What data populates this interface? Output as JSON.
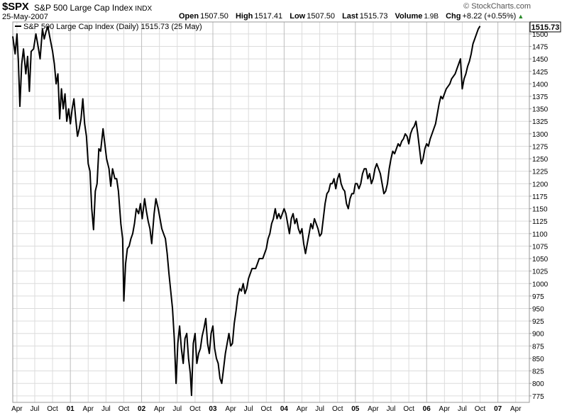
{
  "header": {
    "symbol": "$SPX",
    "name": "S&P 500 Large Cap Index",
    "exchange": "INDX",
    "date": "25-May-2007",
    "brand": "© StockCharts.com",
    "open_label": "Open",
    "open": "1507.50",
    "high_label": "High",
    "high": "1517.41",
    "low_label": "Low",
    "low": "1507.50",
    "last_label": "Last",
    "last": "1515.73",
    "volume_label": "Volume",
    "volume": "1.9B",
    "chg_label": "Chg",
    "chg": "+8.22 (+0.55%)",
    "chg_arrow": "▲",
    "up_color": "#2a8a2a"
  },
  "chart_data": {
    "type": "line",
    "legend": "S&P 500 Large Cap Index (Daily) 1515.73 (25 May)",
    "legend_position": "top-left",
    "last_value_label": "1515.73",
    "grid": true,
    "ylim": [
      762,
      1524
    ],
    "y_ticks": [
      775,
      800,
      825,
      850,
      875,
      900,
      925,
      950,
      975,
      1000,
      1025,
      1050,
      1075,
      1100,
      1125,
      1150,
      1175,
      1200,
      1225,
      1250,
      1275,
      1300,
      1325,
      1350,
      1375,
      1400,
      1425,
      1450,
      1475,
      1500
    ],
    "y_tick_labels": [
      "775",
      "800",
      "825",
      "850",
      "875",
      "900",
      "925",
      "950",
      "975",
      "1000",
      "1025",
      "1050",
      "1075",
      "1100",
      "1125",
      "1150",
      "1175",
      "1200",
      "1225",
      "1250",
      "1275",
      "1300",
      "1325",
      "1350",
      "1375",
      "1400",
      "1425",
      "1450",
      "1475",
      "1500"
    ],
    "x_tick_labels": [
      "Apr",
      "Jul",
      "Oct",
      "01",
      "Apr",
      "Jul",
      "Oct",
      "02",
      "Apr",
      "Jul",
      "Oct",
      "03",
      "Apr",
      "Jul",
      "Oct",
      "04",
      "Apr",
      "Jul",
      "Oct",
      "05",
      "Apr",
      "Jul",
      "Oct",
      "06",
      "Apr",
      "Jul",
      "Oct",
      "07",
      "Apr"
    ],
    "x_tick_months": [
      0,
      3,
      6,
      9,
      12,
      15,
      18,
      21,
      24,
      27,
      30,
      33,
      36,
      39,
      42,
      45,
      48,
      51,
      54,
      57,
      60,
      63,
      66,
      69,
      72,
      75,
      78,
      81,
      84
    ],
    "x_range_months": [
      -0.7,
      86.3
    ],
    "series": [
      {
        "values": [
          [
            -0.7,
            1495
          ],
          [
            -0.3,
            1460
          ],
          [
            0.0,
            1500
          ],
          [
            0.25,
            1445
          ],
          [
            0.5,
            1355
          ],
          [
            0.8,
            1440
          ],
          [
            1.1,
            1470
          ],
          [
            1.5,
            1420
          ],
          [
            1.8,
            1455
          ],
          [
            2.1,
            1385
          ],
          [
            2.4,
            1465
          ],
          [
            2.8,
            1470
          ],
          [
            3.2,
            1500
          ],
          [
            3.5,
            1480
          ],
          [
            3.9,
            1450
          ],
          [
            4.3,
            1510
          ],
          [
            4.6,
            1490
          ],
          [
            4.9,
            1505
          ],
          [
            5.2,
            1515
          ],
          [
            5.6,
            1490
          ],
          [
            6.0,
            1465
          ],
          [
            6.3,
            1440
          ],
          [
            6.6,
            1400
          ],
          [
            6.9,
            1420
          ],
          [
            7.2,
            1330
          ],
          [
            7.5,
            1390
          ],
          [
            7.8,
            1350
          ],
          [
            8.1,
            1380
          ],
          [
            8.4,
            1325
          ],
          [
            8.7,
            1350
          ],
          [
            9.0,
            1320
          ],
          [
            9.3,
            1350
          ],
          [
            9.6,
            1370
          ],
          [
            9.9,
            1330
          ],
          [
            10.2,
            1295
          ],
          [
            10.5,
            1310
          ],
          [
            10.8,
            1330
          ],
          [
            11.1,
            1370
          ],
          [
            11.4,
            1320
          ],
          [
            11.7,
            1295
          ],
          [
            12.0,
            1240
          ],
          [
            12.3,
            1225
          ],
          [
            12.6,
            1150
          ],
          [
            12.9,
            1108
          ],
          [
            13.2,
            1185
          ],
          [
            13.5,
            1200
          ],
          [
            13.8,
            1270
          ],
          [
            14.1,
            1265
          ],
          [
            14.5,
            1310
          ],
          [
            14.8,
            1280
          ],
          [
            15.1,
            1250
          ],
          [
            15.5,
            1230
          ],
          [
            15.8,
            1195
          ],
          [
            16.1,
            1230
          ],
          [
            16.5,
            1210
          ],
          [
            16.8,
            1210
          ],
          [
            17.1,
            1185
          ],
          [
            17.5,
            1120
          ],
          [
            17.8,
            1090
          ],
          [
            18.0,
            965
          ],
          [
            18.3,
            1040
          ],
          [
            18.6,
            1070
          ],
          [
            18.9,
            1075
          ],
          [
            19.2,
            1090
          ],
          [
            19.5,
            1100
          ],
          [
            19.8,
            1120
          ],
          [
            20.1,
            1150
          ],
          [
            20.5,
            1140
          ],
          [
            20.8,
            1160
          ],
          [
            21.1,
            1130
          ],
          [
            21.5,
            1170
          ],
          [
            21.8,
            1145
          ],
          [
            22.1,
            1125
          ],
          [
            22.4,
            1110
          ],
          [
            22.7,
            1080
          ],
          [
            23.1,
            1140
          ],
          [
            23.4,
            1170
          ],
          [
            23.8,
            1150
          ],
          [
            24.1,
            1130
          ],
          [
            24.4,
            1110
          ],
          [
            24.7,
            1100
          ],
          [
            25.0,
            1090
          ],
          [
            25.3,
            1060
          ],
          [
            25.6,
            1020
          ],
          [
            25.9,
            985
          ],
          [
            26.2,
            950
          ],
          [
            26.5,
            890
          ],
          [
            26.8,
            800
          ],
          [
            27.1,
            880
          ],
          [
            27.4,
            915
          ],
          [
            27.7,
            870
          ],
          [
            28.0,
            840
          ],
          [
            28.3,
            890
          ],
          [
            28.6,
            900
          ],
          [
            28.9,
            850
          ],
          [
            29.2,
            820
          ],
          [
            29.4,
            776
          ],
          [
            29.7,
            880
          ],
          [
            30.0,
            900
          ],
          [
            30.3,
            840
          ],
          [
            30.6,
            860
          ],
          [
            30.9,
            870
          ],
          [
            31.2,
            895
          ],
          [
            31.5,
            910
          ],
          [
            31.8,
            930
          ],
          [
            32.1,
            880
          ],
          [
            32.4,
            860
          ],
          [
            32.7,
            900
          ],
          [
            33.0,
            915
          ],
          [
            33.3,
            870
          ],
          [
            33.6,
            850
          ],
          [
            33.9,
            840
          ],
          [
            34.2,
            810
          ],
          [
            34.5,
            800
          ],
          [
            34.8,
            830
          ],
          [
            35.1,
            860
          ],
          [
            35.4,
            880
          ],
          [
            35.7,
            900
          ],
          [
            36.0,
            875
          ],
          [
            36.3,
            880
          ],
          [
            36.6,
            920
          ],
          [
            36.9,
            945
          ],
          [
            37.2,
            975
          ],
          [
            37.5,
            990
          ],
          [
            37.8,
            985
          ],
          [
            38.1,
            1000
          ],
          [
            38.4,
            980
          ],
          [
            38.7,
            990
          ],
          [
            39.0,
            1010
          ],
          [
            39.3,
            1020
          ],
          [
            39.6,
            1030
          ],
          [
            39.9,
            1030
          ],
          [
            40.2,
            1030
          ],
          [
            40.5,
            1040
          ],
          [
            40.8,
            1050
          ],
          [
            41.1,
            1050
          ],
          [
            41.4,
            1050
          ],
          [
            41.7,
            1060
          ],
          [
            42.0,
            1070
          ],
          [
            42.3,
            1090
          ],
          [
            42.6,
            1100
          ],
          [
            42.9,
            1120
          ],
          [
            43.2,
            1130
          ],
          [
            43.5,
            1150
          ],
          [
            43.8,
            1130
          ],
          [
            44.1,
            1140
          ],
          [
            44.4,
            1130
          ],
          [
            44.7,
            1140
          ],
          [
            45.0,
            1150
          ],
          [
            45.3,
            1140
          ],
          [
            45.6,
            1120
          ],
          [
            45.9,
            1100
          ],
          [
            46.2,
            1130
          ],
          [
            46.5,
            1140
          ],
          [
            46.8,
            1120
          ],
          [
            47.1,
            1130
          ],
          [
            47.4,
            1110
          ],
          [
            47.7,
            1100
          ],
          [
            48.0,
            1110
          ],
          [
            48.3,
            1080
          ],
          [
            48.6,
            1060
          ],
          [
            48.9,
            1080
          ],
          [
            49.2,
            1100
          ],
          [
            49.5,
            1120
          ],
          [
            49.8,
            1110
          ],
          [
            50.1,
            1130
          ],
          [
            50.4,
            1120
          ],
          [
            50.7,
            1110
          ],
          [
            51.0,
            1095
          ],
          [
            51.3,
            1100
          ],
          [
            51.6,
            1130
          ],
          [
            51.9,
            1160
          ],
          [
            52.2,
            1180
          ],
          [
            52.5,
            1185
          ],
          [
            52.8,
            1200
          ],
          [
            53.1,
            1200
          ],
          [
            53.4,
            1210
          ],
          [
            53.7,
            1190
          ],
          [
            54.0,
            1210
          ],
          [
            54.3,
            1220
          ],
          [
            54.6,
            1200
          ],
          [
            54.9,
            1190
          ],
          [
            55.2,
            1185
          ],
          [
            55.5,
            1160
          ],
          [
            55.8,
            1150
          ],
          [
            56.1,
            1170
          ],
          [
            56.4,
            1180
          ],
          [
            56.7,
            1180
          ],
          [
            57.0,
            1200
          ],
          [
            57.3,
            1200
          ],
          [
            57.6,
            1190
          ],
          [
            57.9,
            1200
          ],
          [
            58.2,
            1220
          ],
          [
            58.5,
            1230
          ],
          [
            58.8,
            1230
          ],
          [
            59.1,
            1210
          ],
          [
            59.4,
            1220
          ],
          [
            59.7,
            1200
          ],
          [
            60.0,
            1210
          ],
          [
            60.3,
            1230
          ],
          [
            60.6,
            1240
          ],
          [
            60.9,
            1230
          ],
          [
            61.2,
            1220
          ],
          [
            61.5,
            1200
          ],
          [
            61.8,
            1180
          ],
          [
            62.1,
            1185
          ],
          [
            62.4,
            1200
          ],
          [
            62.7,
            1230
          ],
          [
            63.0,
            1250
          ],
          [
            63.3,
            1265
          ],
          [
            63.6,
            1260
          ],
          [
            63.9,
            1270
          ],
          [
            64.2,
            1280
          ],
          [
            64.5,
            1275
          ],
          [
            64.8,
            1285
          ],
          [
            65.1,
            1290
          ],
          [
            65.4,
            1300
          ],
          [
            65.7,
            1295
          ],
          [
            66.0,
            1280
          ],
          [
            66.3,
            1300
          ],
          [
            66.6,
            1310
          ],
          [
            66.9,
            1315
          ],
          [
            67.2,
            1325
          ],
          [
            67.5,
            1300
          ],
          [
            67.8,
            1270
          ],
          [
            68.1,
            1240
          ],
          [
            68.4,
            1250
          ],
          [
            68.7,
            1270
          ],
          [
            69.0,
            1280
          ],
          [
            69.3,
            1275
          ],
          [
            69.6,
            1290
          ],
          [
            69.9,
            1300
          ],
          [
            70.2,
            1310
          ],
          [
            70.5,
            1320
          ],
          [
            70.8,
            1340
          ],
          [
            71.1,
            1360
          ],
          [
            71.4,
            1375
          ],
          [
            71.7,
            1370
          ],
          [
            72.0,
            1380
          ],
          [
            72.3,
            1390
          ],
          [
            72.6,
            1395
          ],
          [
            72.9,
            1400
          ],
          [
            73.2,
            1410
          ],
          [
            73.5,
            1415
          ],
          [
            73.8,
            1420
          ],
          [
            74.1,
            1430
          ],
          [
            74.4,
            1440
          ],
          [
            74.7,
            1450
          ],
          [
            75.0,
            1390
          ],
          [
            75.3,
            1410
          ],
          [
            75.6,
            1420
          ],
          [
            75.9,
            1435
          ],
          [
            76.2,
            1445
          ],
          [
            76.5,
            1460
          ],
          [
            76.8,
            1480
          ],
          [
            77.1,
            1490
          ],
          [
            77.4,
            1500
          ],
          [
            77.7,
            1510
          ],
          [
            78.0,
            1515.73
          ]
        ]
      }
    ]
  }
}
